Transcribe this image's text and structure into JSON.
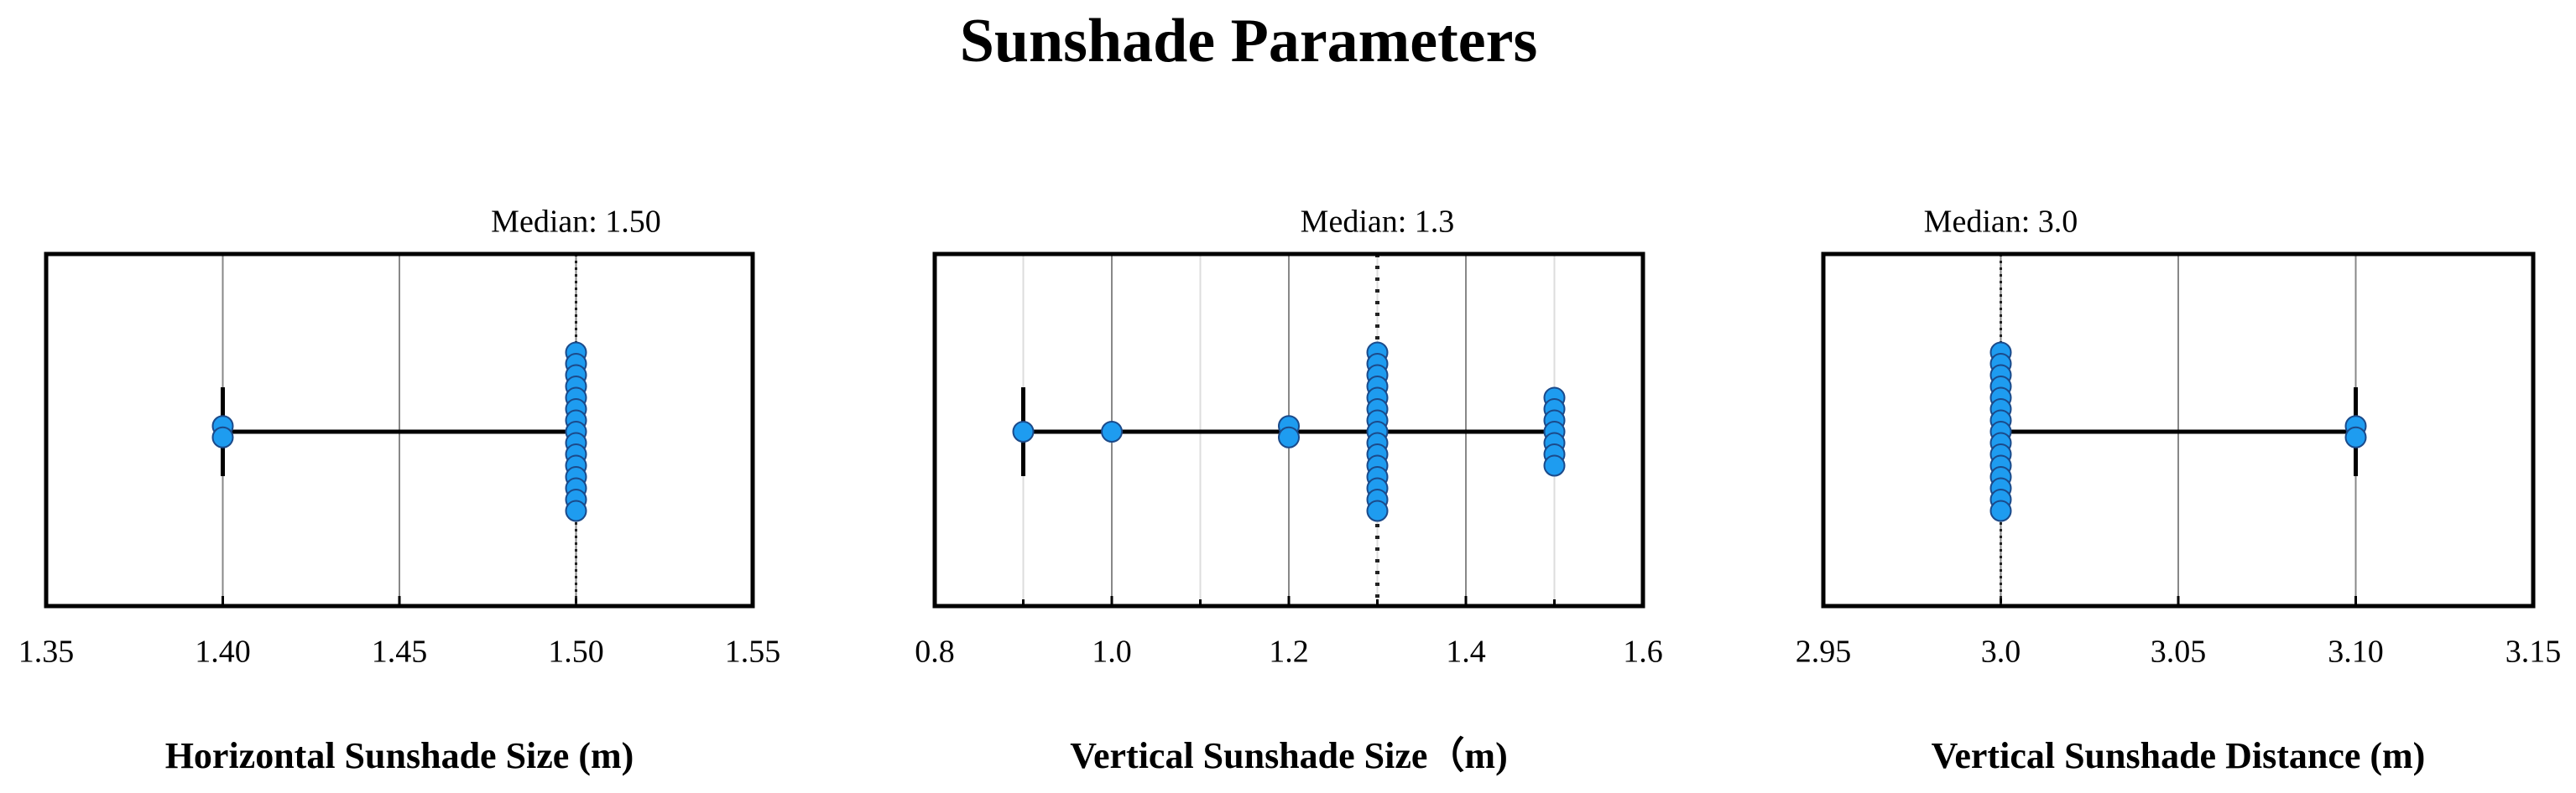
{
  "title": "Sunshade Parameters",
  "chart_data": [
    {
      "type": "strip",
      "xlabel": "Horizontal Sunshade Size (m)",
      "values": [
        1.4,
        1.4,
        1.5,
        1.5,
        1.5,
        1.5,
        1.5,
        1.5,
        1.5,
        1.5,
        1.5,
        1.5,
        1.5,
        1.5,
        1.5,
        1.5,
        1.5
      ],
      "range": [
        1.4,
        1.5
      ],
      "median": 1.5,
      "median_label": "Median: 1.50",
      "xlim": [
        1.35,
        1.55
      ],
      "xticks": [
        1.35,
        {
          "value": 1.4,
          "label": "1.40"
        },
        1.45,
        {
          "value": 1.5,
          "label": "1.50"
        },
        1.55
      ],
      "minor_xticks": [],
      "color": "#1e9cf0",
      "grid": true
    },
    {
      "type": "strip",
      "xlabel": "Vertical Sunshade Size（m)",
      "values": [
        0.9,
        1.0,
        1.2,
        1.2,
        1.3,
        1.3,
        1.3,
        1.3,
        1.3,
        1.3,
        1.3,
        1.3,
        1.3,
        1.3,
        1.3,
        1.3,
        1.3,
        1.3,
        1.3,
        1.5,
        1.5,
        1.5,
        1.5,
        1.5,
        1.5,
        1.5
      ],
      "range": [
        0.9,
        1.5
      ],
      "median": 1.3,
      "median_label": "Median: 1.3",
      "xlim": [
        0.8,
        1.6
      ],
      "xticks": [
        0.8,
        {
          "value": 1.0,
          "label": "1.0"
        },
        1.2,
        1.4,
        1.6
      ],
      "minor_xticks": [
        0.9,
        1.1,
        1.3,
        1.5
      ],
      "color": "#1e9cf0",
      "grid": true
    },
    {
      "type": "strip",
      "xlabel": "Vertical Sunshade Distance (m)",
      "values": [
        3.0,
        3.0,
        3.0,
        3.0,
        3.0,
        3.0,
        3.0,
        3.0,
        3.0,
        3.0,
        3.0,
        3.0,
        3.0,
        3.0,
        3.0,
        3.1,
        3.1
      ],
      "range": [
        3.0,
        3.1
      ],
      "median": 3.0,
      "median_label": "Median: 3.0",
      "xlim": [
        2.95,
        3.15
      ],
      "xticks": [
        2.95,
        {
          "value": 3.0,
          "label": "3.0"
        },
        3.05,
        {
          "value": 3.1,
          "label": "3.10"
        },
        3.15
      ],
      "minor_xticks": [],
      "color": "#1e9cf0",
      "grid": true
    }
  ]
}
